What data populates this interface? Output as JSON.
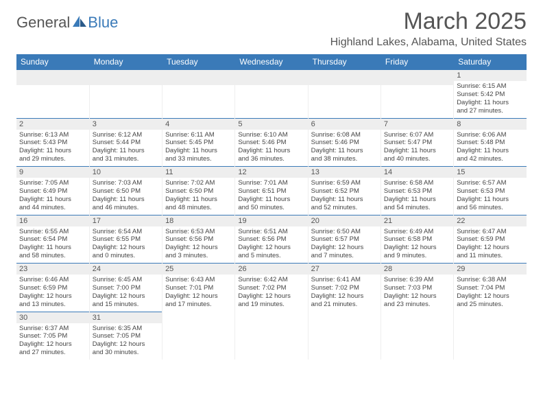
{
  "brand": {
    "part1": "General",
    "part2": "Blue"
  },
  "title": "March 2025",
  "location": "Highland Lakes, Alabama, United States",
  "day_headers": [
    "Sunday",
    "Monday",
    "Tuesday",
    "Wednesday",
    "Thursday",
    "Friday",
    "Saturday"
  ],
  "colors": {
    "header_bg": "#3a7ab8",
    "header_text": "#ffffff",
    "daynum_bg": "#eeeeee",
    "text_primary": "#555555",
    "text_body": "#444444",
    "border_week": "#3a7ab8"
  },
  "typography": {
    "title_fontsize": 34,
    "location_fontsize": 16,
    "dayhead_fontsize": 12,
    "daynum_fontsize": 11,
    "body_fontsize": 9.5
  },
  "weeks": [
    [
      {
        "blank": true
      },
      {
        "blank": true
      },
      {
        "blank": true
      },
      {
        "blank": true
      },
      {
        "blank": true
      },
      {
        "blank": true
      },
      {
        "num": "1",
        "sunrise": "Sunrise: 6:15 AM",
        "sunset": "Sunset: 5:42 PM",
        "daylight1": "Daylight: 11 hours",
        "daylight2": "and 27 minutes."
      }
    ],
    [
      {
        "num": "2",
        "sunrise": "Sunrise: 6:13 AM",
        "sunset": "Sunset: 5:43 PM",
        "daylight1": "Daylight: 11 hours",
        "daylight2": "and 29 minutes."
      },
      {
        "num": "3",
        "sunrise": "Sunrise: 6:12 AM",
        "sunset": "Sunset: 5:44 PM",
        "daylight1": "Daylight: 11 hours",
        "daylight2": "and 31 minutes."
      },
      {
        "num": "4",
        "sunrise": "Sunrise: 6:11 AM",
        "sunset": "Sunset: 5:45 PM",
        "daylight1": "Daylight: 11 hours",
        "daylight2": "and 33 minutes."
      },
      {
        "num": "5",
        "sunrise": "Sunrise: 6:10 AM",
        "sunset": "Sunset: 5:46 PM",
        "daylight1": "Daylight: 11 hours",
        "daylight2": "and 36 minutes."
      },
      {
        "num": "6",
        "sunrise": "Sunrise: 6:08 AM",
        "sunset": "Sunset: 5:46 PM",
        "daylight1": "Daylight: 11 hours",
        "daylight2": "and 38 minutes."
      },
      {
        "num": "7",
        "sunrise": "Sunrise: 6:07 AM",
        "sunset": "Sunset: 5:47 PM",
        "daylight1": "Daylight: 11 hours",
        "daylight2": "and 40 minutes."
      },
      {
        "num": "8",
        "sunrise": "Sunrise: 6:06 AM",
        "sunset": "Sunset: 5:48 PM",
        "daylight1": "Daylight: 11 hours",
        "daylight2": "and 42 minutes."
      }
    ],
    [
      {
        "num": "9",
        "sunrise": "Sunrise: 7:05 AM",
        "sunset": "Sunset: 6:49 PM",
        "daylight1": "Daylight: 11 hours",
        "daylight2": "and 44 minutes."
      },
      {
        "num": "10",
        "sunrise": "Sunrise: 7:03 AM",
        "sunset": "Sunset: 6:50 PM",
        "daylight1": "Daylight: 11 hours",
        "daylight2": "and 46 minutes."
      },
      {
        "num": "11",
        "sunrise": "Sunrise: 7:02 AM",
        "sunset": "Sunset: 6:50 PM",
        "daylight1": "Daylight: 11 hours",
        "daylight2": "and 48 minutes."
      },
      {
        "num": "12",
        "sunrise": "Sunrise: 7:01 AM",
        "sunset": "Sunset: 6:51 PM",
        "daylight1": "Daylight: 11 hours",
        "daylight2": "and 50 minutes."
      },
      {
        "num": "13",
        "sunrise": "Sunrise: 6:59 AM",
        "sunset": "Sunset: 6:52 PM",
        "daylight1": "Daylight: 11 hours",
        "daylight2": "and 52 minutes."
      },
      {
        "num": "14",
        "sunrise": "Sunrise: 6:58 AM",
        "sunset": "Sunset: 6:53 PM",
        "daylight1": "Daylight: 11 hours",
        "daylight2": "and 54 minutes."
      },
      {
        "num": "15",
        "sunrise": "Sunrise: 6:57 AM",
        "sunset": "Sunset: 6:53 PM",
        "daylight1": "Daylight: 11 hours",
        "daylight2": "and 56 minutes."
      }
    ],
    [
      {
        "num": "16",
        "sunrise": "Sunrise: 6:55 AM",
        "sunset": "Sunset: 6:54 PM",
        "daylight1": "Daylight: 11 hours",
        "daylight2": "and 58 minutes."
      },
      {
        "num": "17",
        "sunrise": "Sunrise: 6:54 AM",
        "sunset": "Sunset: 6:55 PM",
        "daylight1": "Daylight: 12 hours",
        "daylight2": "and 0 minutes."
      },
      {
        "num": "18",
        "sunrise": "Sunrise: 6:53 AM",
        "sunset": "Sunset: 6:56 PM",
        "daylight1": "Daylight: 12 hours",
        "daylight2": "and 3 minutes."
      },
      {
        "num": "19",
        "sunrise": "Sunrise: 6:51 AM",
        "sunset": "Sunset: 6:56 PM",
        "daylight1": "Daylight: 12 hours",
        "daylight2": "and 5 minutes."
      },
      {
        "num": "20",
        "sunrise": "Sunrise: 6:50 AM",
        "sunset": "Sunset: 6:57 PM",
        "daylight1": "Daylight: 12 hours",
        "daylight2": "and 7 minutes."
      },
      {
        "num": "21",
        "sunrise": "Sunrise: 6:49 AM",
        "sunset": "Sunset: 6:58 PM",
        "daylight1": "Daylight: 12 hours",
        "daylight2": "and 9 minutes."
      },
      {
        "num": "22",
        "sunrise": "Sunrise: 6:47 AM",
        "sunset": "Sunset: 6:59 PM",
        "daylight1": "Daylight: 12 hours",
        "daylight2": "and 11 minutes."
      }
    ],
    [
      {
        "num": "23",
        "sunrise": "Sunrise: 6:46 AM",
        "sunset": "Sunset: 6:59 PM",
        "daylight1": "Daylight: 12 hours",
        "daylight2": "and 13 minutes."
      },
      {
        "num": "24",
        "sunrise": "Sunrise: 6:45 AM",
        "sunset": "Sunset: 7:00 PM",
        "daylight1": "Daylight: 12 hours",
        "daylight2": "and 15 minutes."
      },
      {
        "num": "25",
        "sunrise": "Sunrise: 6:43 AM",
        "sunset": "Sunset: 7:01 PM",
        "daylight1": "Daylight: 12 hours",
        "daylight2": "and 17 minutes."
      },
      {
        "num": "26",
        "sunrise": "Sunrise: 6:42 AM",
        "sunset": "Sunset: 7:02 PM",
        "daylight1": "Daylight: 12 hours",
        "daylight2": "and 19 minutes."
      },
      {
        "num": "27",
        "sunrise": "Sunrise: 6:41 AM",
        "sunset": "Sunset: 7:02 PM",
        "daylight1": "Daylight: 12 hours",
        "daylight2": "and 21 minutes."
      },
      {
        "num": "28",
        "sunrise": "Sunrise: 6:39 AM",
        "sunset": "Sunset: 7:03 PM",
        "daylight1": "Daylight: 12 hours",
        "daylight2": "and 23 minutes."
      },
      {
        "num": "29",
        "sunrise": "Sunrise: 6:38 AM",
        "sunset": "Sunset: 7:04 PM",
        "daylight1": "Daylight: 12 hours",
        "daylight2": "and 25 minutes."
      }
    ],
    [
      {
        "num": "30",
        "sunrise": "Sunrise: 6:37 AM",
        "sunset": "Sunset: 7:05 PM",
        "daylight1": "Daylight: 12 hours",
        "daylight2": "and 27 minutes."
      },
      {
        "num": "31",
        "sunrise": "Sunrise: 6:35 AM",
        "sunset": "Sunset: 7:05 PM",
        "daylight1": "Daylight: 12 hours",
        "daylight2": "and 30 minutes."
      },
      {
        "blank": true
      },
      {
        "blank": true
      },
      {
        "blank": true
      },
      {
        "blank": true
      },
      {
        "blank": true
      }
    ]
  ]
}
